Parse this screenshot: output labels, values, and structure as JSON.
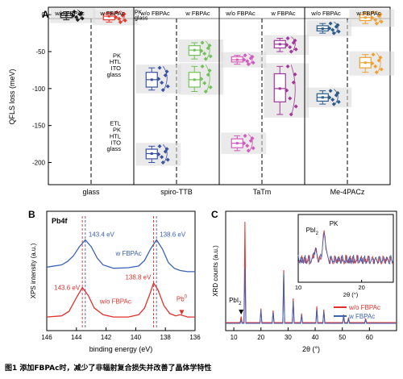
{
  "chart_data": [
    {
      "panel": "A",
      "type": "box",
      "ylabel": "QFLS loss (meV)",
      "ylim": [
        -230,
        10
      ],
      "yticks": [
        0,
        -50,
        -100,
        -150,
        -200
      ],
      "column_headers": [
        "w/o FBPAc",
        "w FBPAc"
      ],
      "groups": [
        {
          "name": "glass",
          "layers": [
            {
              "label": "PK\nglass",
              "wo": {
                "median": -1,
                "q1": -4,
                "q3": 2,
                "min": -7,
                "max": 4
              },
              "w": {
                "median": -2,
                "q1": -7,
                "q3": 1,
                "min": -10,
                "max": 3
              }
            }
          ]
        },
        {
          "name": "spiro-TTB",
          "layers": [
            {
              "label": "PK\nHTL\nITO\nglass",
              "wo": {
                "median": -88,
                "q1": -98,
                "q3": -78,
                "min": -102,
                "max": -72
              },
              "w": {
                "median": -88,
                "q1": -98,
                "q3": -78,
                "min": -104,
                "max": -70
              }
            },
            {
              "label": "",
              "wo": null,
              "w": {
                "median": -48,
                "q1": -55,
                "q3": -42,
                "min": -60,
                "max": -38
              }
            },
            {
              "label": "ETL\nPK\nHTL\nITO\nglass",
              "wo": {
                "median": -188,
                "q1": -195,
                "q3": -182,
                "min": -200,
                "max": -178
              },
              "w": null
            }
          ]
        },
        {
          "name": "TaTm",
          "layers": [
            {
              "label": "",
              "wo": {
                "median": -61,
                "q1": -64,
                "q3": -57,
                "min": -67,
                "max": -55
              },
              "w": {
                "median": -40,
                "q1": -45,
                "q3": -35,
                "min": -50,
                "max": -32
              }
            },
            {
              "label": "",
              "wo": null,
              "w": {
                "median": -100,
                "q1": -118,
                "q3": -80,
                "min": -135,
                "max": -70
              }
            },
            {
              "label": "",
              "wo": {
                "median": -174,
                "q1": -180,
                "q3": -168,
                "min": -184,
                "max": -164
              },
              "w": null
            }
          ]
        },
        {
          "name": "Me-4PACz",
          "layers": [
            {
              "label": "",
              "wo": {
                "median": -19,
                "q1": -22,
                "q3": -15,
                "min": -25,
                "max": -12
              },
              "w": {
                "median": -4,
                "q1": -8,
                "q3": 0,
                "min": -12,
                "max": 3
              }
            },
            {
              "label": "",
              "wo": null,
              "w": {
                "median": -65,
                "q1": -72,
                "q3": -58,
                "min": -78,
                "max": -54
              }
            },
            {
              "label": "",
              "wo": {
                "median": -112,
                "q1": -117,
                "q3": -107,
                "min": -121,
                "max": -103
              },
              "w": null
            }
          ]
        }
      ],
      "colors": {
        "glass_wo": "#222222",
        "glass_w": "#e8392f",
        "spiro_wo": "#3b52a3",
        "spiro_w": "#72c15a",
        "tatm_wo": "#d35bbf",
        "tatm_w": "#a0379a",
        "me_wo": "#2b5b8a",
        "me_w": "#f0a030"
      }
    },
    {
      "panel": "B",
      "type": "line",
      "label": "Pb4f",
      "xlabel": "binding energy (eV)",
      "ylabel": "XPS intensity (a.u.)",
      "xlim": [
        146,
        136
      ],
      "xticks": [
        146,
        144,
        142,
        140,
        138,
        136
      ],
      "series": [
        {
          "name": "w FBPAc",
          "color": "#3b62b6",
          "x": [
            146,
            145,
            144.6,
            144.2,
            143.8,
            143.4,
            143.0,
            142.6,
            142.2,
            141.5,
            140.5,
            139.8,
            139.4,
            139.0,
            138.6,
            138.2,
            137.8,
            137.4,
            137.0,
            136.5,
            136
          ],
          "y": [
            0.56,
            0.58,
            0.61,
            0.66,
            0.74,
            0.8,
            0.74,
            0.64,
            0.58,
            0.55,
            0.555,
            0.57,
            0.62,
            0.72,
            0.8,
            0.72,
            0.6,
            0.55,
            0.53,
            0.52,
            0.52
          ],
          "peaks": [
            {
              "x": 143.4,
              "label": "143.4 eV"
            },
            {
              "x": 138.6,
              "label": "138.6 eV"
            }
          ]
        },
        {
          "name": "w/o FBPAc",
          "color": "#e0312b",
          "x": [
            146,
            145,
            144.5,
            144.0,
            143.6,
            143.2,
            142.8,
            142.2,
            141.5,
            140.5,
            139.8,
            139.4,
            139.0,
            138.8,
            138.5,
            138.1,
            137.7,
            137.3,
            137.0,
            136.5,
            136
          ],
          "y": [
            0.12,
            0.13,
            0.17,
            0.29,
            0.38,
            0.31,
            0.2,
            0.14,
            0.12,
            0.12,
            0.14,
            0.2,
            0.34,
            0.42,
            0.36,
            0.22,
            0.15,
            0.13,
            0.14,
            0.12,
            0.12
          ],
          "peaks": [
            {
              "x": 143.6,
              "label": "143.6 eV"
            },
            {
              "x": 138.8,
              "label": "138.8 eV"
            }
          ]
        }
      ],
      "annotations": [
        {
          "x": 136.9,
          "text": "Pb"
        }
      ]
    },
    {
      "panel": "C",
      "type": "line",
      "xlabel": "2θ (°)",
      "ylabel": "XRD counts (a.u.)",
      "xlim": [
        7,
        70
      ],
      "xticks": [
        10,
        20,
        30,
        40,
        50,
        60
      ],
      "legend": "bottom-right",
      "series": [
        {
          "name": "w/o FBPAc",
          "color": "#e0312b"
        },
        {
          "name": "w FBPAc",
          "color": "#3b62b6"
        }
      ],
      "peaks": [
        {
          "x": 12.7,
          "wo": 0.06,
          "w": 0.03
        },
        {
          "x": 14.1,
          "wo": 1.0,
          "w": 0.55
        },
        {
          "x": 20.0,
          "wo": 0.14,
          "w": 0.13
        },
        {
          "x": 24.5,
          "wo": 0.12,
          "w": 0.11
        },
        {
          "x": 28.4,
          "wo": 0.52,
          "w": 0.5
        },
        {
          "x": 31.9,
          "wo": 0.24,
          "w": 0.22
        },
        {
          "x": 35.0,
          "wo": 0.09,
          "w": 0.08
        },
        {
          "x": 40.6,
          "wo": 0.16,
          "w": 0.14
        },
        {
          "x": 43.2,
          "wo": 0.13,
          "w": 0.12
        },
        {
          "x": 50.5,
          "wo": 0.08,
          "w": 0.07
        },
        {
          "x": 52.3,
          "wo": 0.05,
          "w": 0.05
        },
        {
          "x": 58.6,
          "wo": 0.04,
          "w": 0.04
        }
      ],
      "labels": {
        "pbi2": "PbI",
        "pk": "PK"
      },
      "inset": {
        "xlim": [
          10,
          25
        ],
        "xticks": [
          10,
          20
        ],
        "xlabel": "2θ (°)",
        "peaks": [
          {
            "x": 12.7,
            "label": "PbI"
          },
          {
            "x": 14.1,
            "label": "PK"
          }
        ]
      }
    }
  ],
  "figure": {
    "panel_labels": [
      "A",
      "B",
      "C"
    ],
    "caption": "图1 添加FBPAc时，减少了非辐射复合损失并改善了晶体学特性"
  }
}
